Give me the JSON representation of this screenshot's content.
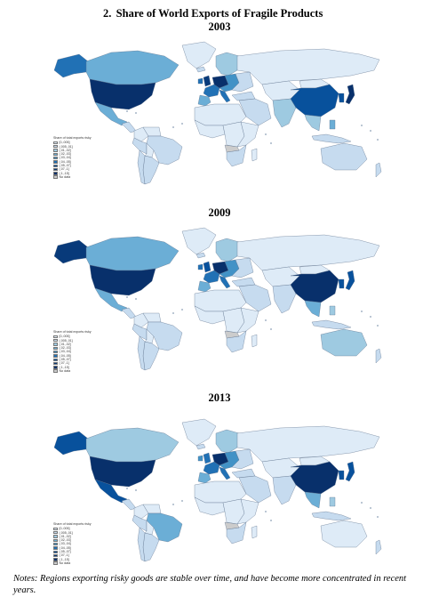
{
  "figure": {
    "number": "2.",
    "title": "Share of World Exports of Fragile Products"
  },
  "legend": {
    "title": "Share of total exports risky",
    "bins": [
      "[0,.005]",
      "(.005,.01]",
      "(.01,.02]",
      "(.02,.03]",
      "(.03,.04]",
      "(.04,.05]",
      "(.05,.07]",
      "(.07,.1]",
      "(.1,.15]",
      "No data"
    ],
    "colors": [
      "#deebf7",
      "#c6dbef",
      "#9ecae1",
      "#6baed6",
      "#4292c6",
      "#2171b5",
      "#08519c",
      "#083a7a",
      "#08306b",
      "#cccccc"
    ]
  },
  "maps": [
    {
      "year": "2003",
      "regions": {
        "greenland": 0,
        "alaska": 5,
        "canada": 3,
        "usa": 8,
        "mexico": 3,
        "central-america": 1,
        "colombia": 0,
        "venezuela": 0,
        "brazil": 1,
        "peru": 1,
        "bolivia": 0,
        "argentina": 1,
        "chile": 1,
        "uk": 7,
        "ireland": 5,
        "iceland": 1,
        "scandinavia": 2,
        "france": 5,
        "iberia": 3,
        "germany-benelux": 8,
        "italy": 5,
        "central-europe": 4,
        "eastern-europe": 1,
        "russia": 0,
        "turkey": 1,
        "middle-east": 1,
        "north-africa": 0,
        "west-africa": 0,
        "central-africa": 0,
        "east-africa": 0,
        "southern-africa": 1,
        "angola": 9,
        "madagascar": 0,
        "central-asia": 0,
        "india": 2,
        "southeast-asia": 2,
        "indonesia": 1,
        "china": 6,
        "mongolia": 0,
        "korea": 6,
        "japan": 8,
        "philippines": 3,
        "australia": 1,
        "new-zealand": 1
      }
    },
    {
      "year": "2009",
      "regions": {
        "greenland": 0,
        "alaska": 7,
        "canada": 3,
        "usa": 8,
        "mexico": 3,
        "central-america": 1,
        "colombia": 0,
        "venezuela": 0,
        "brazil": 1,
        "peru": 1,
        "bolivia": 0,
        "argentina": 1,
        "chile": 1,
        "uk": 6,
        "ireland": 5,
        "iceland": 1,
        "scandinavia": 2,
        "france": 5,
        "iberia": 3,
        "germany-benelux": 8,
        "italy": 5,
        "central-europe": 4,
        "eastern-europe": 1,
        "russia": 0,
        "turkey": 1,
        "middle-east": 1,
        "north-africa": 0,
        "west-africa": 0,
        "central-africa": 0,
        "east-africa": 0,
        "southern-africa": 1,
        "angola": 9,
        "madagascar": 0,
        "central-asia": 0,
        "india": 1,
        "southeast-asia": 3,
        "indonesia": 1,
        "china": 8,
        "mongolia": 0,
        "korea": 6,
        "japan": 6,
        "philippines": 2,
        "australia": 2,
        "new-zealand": 1
      }
    },
    {
      "year": "2013",
      "regions": {
        "greenland": 0,
        "alaska": 6,
        "canada": 2,
        "usa": 8,
        "mexico": 6,
        "central-america": 1,
        "colombia": 0,
        "venezuela": 0,
        "brazil": 3,
        "peru": 1,
        "bolivia": 0,
        "argentina": 1,
        "chile": 1,
        "uk": 5,
        "ireland": 4,
        "iceland": 1,
        "scandinavia": 2,
        "france": 5,
        "iberia": 3,
        "germany-benelux": 8,
        "italy": 5,
        "central-europe": 4,
        "eastern-europe": 1,
        "russia": 0,
        "turkey": 1,
        "middle-east": 1,
        "north-africa": 0,
        "west-africa": 0,
        "central-africa": 0,
        "east-africa": 0,
        "southern-africa": 1,
        "angola": 9,
        "madagascar": 0,
        "central-asia": 0,
        "india": 1,
        "southeast-asia": 3,
        "indonesia": 1,
        "china": 8,
        "mongolia": 0,
        "korea": 6,
        "japan": 6,
        "philippines": 2,
        "australia": 0,
        "new-zealand": 1
      }
    }
  ],
  "notes": "Notes: Regions exporting risky goods are stable over time, and have become more concentrated in recent years."
}
